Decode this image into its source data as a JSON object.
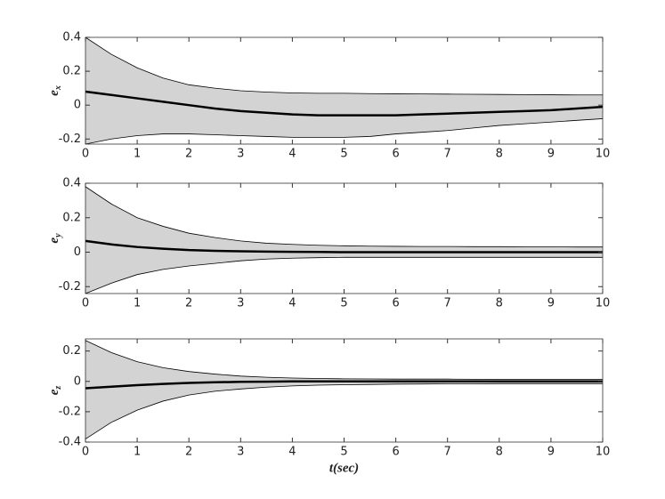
{
  "chart_data": [
    {
      "type": "line",
      "ylabel": {
        "base": "e",
        "sub": "x"
      },
      "x": [
        0,
        0.5,
        1,
        1.5,
        2,
        2.5,
        3,
        3.5,
        4,
        4.5,
        5,
        5.5,
        6,
        6.5,
        7,
        7.5,
        8,
        8.5,
        9,
        9.5,
        10
      ],
      "upper": [
        0.4,
        0.3,
        0.22,
        0.16,
        0.12,
        0.1,
        0.085,
        0.077,
        0.072,
        0.07,
        0.07,
        0.068,
        0.067,
        0.066,
        0.065,
        0.064,
        0.063,
        0.062,
        0.061,
        0.06,
        0.06
      ],
      "lower": [
        -0.23,
        -0.2,
        -0.18,
        -0.17,
        -0.17,
        -0.175,
        -0.18,
        -0.185,
        -0.19,
        -0.19,
        -0.19,
        -0.185,
        -0.17,
        -0.16,
        -0.15,
        -0.135,
        -0.12,
        -0.11,
        -0.1,
        -0.09,
        -0.08
      ],
      "values": [
        0.08,
        0.06,
        0.04,
        0.02,
        0,
        -0.02,
        -0.035,
        -0.045,
        -0.055,
        -0.06,
        -0.06,
        -0.06,
        -0.06,
        -0.055,
        -0.05,
        -0.045,
        -0.04,
        -0.035,
        -0.03,
        -0.02,
        -0.01
      ],
      "band_color": "#d3d3d3",
      "color": "#000000",
      "xlim": [
        0,
        10
      ],
      "xticks": [
        0,
        1,
        2,
        3,
        4,
        5,
        6,
        7,
        8,
        9,
        10
      ],
      "ylim": [
        -0.23,
        0.4
      ],
      "yticks": [
        -0.2,
        0,
        0.2,
        0.4
      ]
    },
    {
      "type": "line",
      "ylabel": {
        "base": "e",
        "sub": "y"
      },
      "x": [
        0,
        0.5,
        1,
        1.5,
        2,
        2.5,
        3,
        3.5,
        4,
        4.5,
        5,
        5.5,
        6,
        6.5,
        7,
        7.5,
        8,
        8.5,
        9,
        9.5,
        10
      ],
      "upper": [
        0.38,
        0.28,
        0.2,
        0.15,
        0.11,
        0.085,
        0.065,
        0.052,
        0.045,
        0.04,
        0.037,
        0.035,
        0.034,
        0.033,
        0.033,
        0.032,
        0.032,
        0.031,
        0.031,
        0.03,
        0.03
      ],
      "lower": [
        -0.24,
        -0.18,
        -0.13,
        -0.1,
        -0.08,
        -0.065,
        -0.05,
        -0.04,
        -0.035,
        -0.032,
        -0.03,
        -0.03,
        -0.03,
        -0.03,
        -0.03,
        -0.03,
        -0.03,
        -0.03,
        -0.03,
        -0.03,
        -0.03
      ],
      "values": [
        0.065,
        0.045,
        0.03,
        0.02,
        0.012,
        0.008,
        0.005,
        0.003,
        0.002,
        0.001,
        0,
        0,
        0,
        0,
        0,
        0,
        0,
        0,
        0,
        0,
        0
      ],
      "band_color": "#d3d3d3",
      "color": "#000000",
      "xlim": [
        0,
        10
      ],
      "xticks": [
        0,
        1,
        2,
        3,
        4,
        5,
        6,
        7,
        8,
        9,
        10
      ],
      "ylim": [
        -0.24,
        0.4
      ],
      "yticks": [
        -0.2,
        0,
        0.2,
        0.4
      ]
    },
    {
      "type": "line",
      "ylabel": {
        "base": "e",
        "sub": "z"
      },
      "xlabel": "t(sec)",
      "x": [
        0,
        0.5,
        1,
        1.5,
        2,
        2.5,
        3,
        3.5,
        4,
        4.5,
        5,
        5.5,
        6,
        6.5,
        7,
        7.5,
        8,
        8.5,
        9,
        9.5,
        10
      ],
      "upper": [
        0.27,
        0.19,
        0.13,
        0.09,
        0.065,
        0.048,
        0.035,
        0.027,
        0.022,
        0.019,
        0.017,
        0.016,
        0.015,
        0.015,
        0.015,
        0.014,
        0.014,
        0.014,
        0.014,
        0.014,
        0.014
      ],
      "lower": [
        -0.38,
        -0.27,
        -0.19,
        -0.13,
        -0.09,
        -0.065,
        -0.05,
        -0.038,
        -0.03,
        -0.025,
        -0.022,
        -0.02,
        -0.018,
        -0.017,
        -0.016,
        -0.016,
        -0.015,
        -0.015,
        -0.015,
        -0.015,
        -0.015
      ],
      "values": [
        -0.045,
        -0.035,
        -0.025,
        -0.017,
        -0.01,
        -0.006,
        -0.003,
        -0.002,
        0,
        0,
        0,
        0,
        0,
        0,
        0,
        0,
        0,
        0,
        0,
        0,
        0
      ],
      "band_color": "#d3d3d3",
      "color": "#000000",
      "xlim": [
        0,
        10
      ],
      "xticks": [
        0,
        1,
        2,
        3,
        4,
        5,
        6,
        7,
        8,
        9,
        10
      ],
      "ylim": [
        -0.4,
        0.28
      ],
      "yticks": [
        -0.4,
        -0.2,
        0,
        0.2
      ]
    }
  ]
}
